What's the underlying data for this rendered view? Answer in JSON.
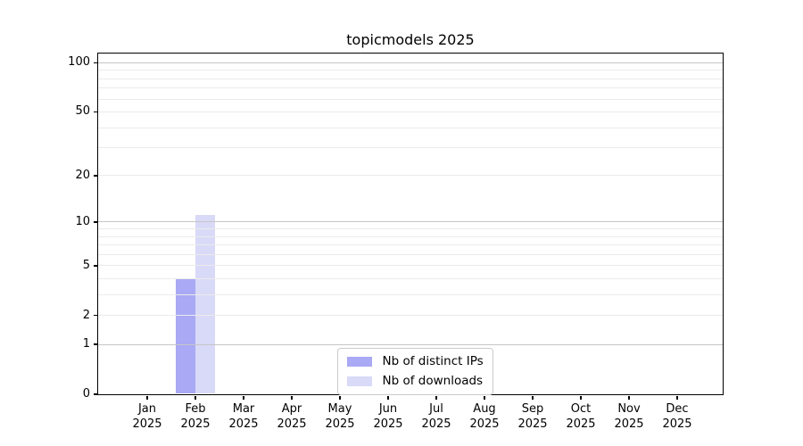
{
  "title": "topicmodels 2025",
  "chart_data": {
    "type": "bar",
    "title": "topicmodels 2025",
    "categories": [
      "Jan",
      "Feb",
      "Mar",
      "Apr",
      "May",
      "Jun",
      "Jul",
      "Aug",
      "Sep",
      "Oct",
      "Nov",
      "Dec"
    ],
    "category_year": "2025",
    "series": [
      {
        "name": "Nb of distinct IPs",
        "color": "#a9a9f5",
        "values": [
          0,
          4,
          0,
          0,
          0,
          0,
          0,
          0,
          0,
          0,
          0,
          0
        ]
      },
      {
        "name": "Nb of downloads",
        "color": "#d9d9f8",
        "values": [
          0,
          11,
          0,
          0,
          0,
          0,
          0,
          0,
          0,
          0,
          0,
          0
        ]
      }
    ],
    "yscale": "log10(1+x)",
    "ylim": [
      0,
      113
    ],
    "y_ticks_labeled": [
      0,
      1,
      2,
      5,
      10,
      20,
      50,
      100
    ],
    "grid_major_values": [
      1,
      10,
      100
    ],
    "grid_minor_values": [
      2,
      3,
      4,
      5,
      6,
      7,
      8,
      9,
      20,
      30,
      40,
      50,
      60,
      70,
      80,
      90
    ],
    "legend_position": "lower center",
    "grid": "horizontal"
  },
  "colors": {
    "grid_major": "#c6c6c6",
    "grid_minor": "#ebebeb",
    "axis": "#000000",
    "background": "#ffffff"
  }
}
